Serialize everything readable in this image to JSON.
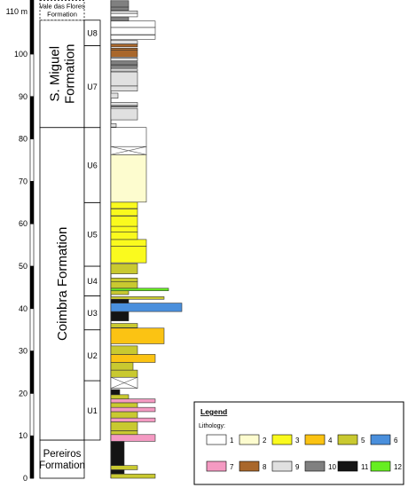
{
  "colors": {
    "1": "#ffffff",
    "2": "#fdfccf",
    "3": "#fafa1e",
    "4": "#fbc313",
    "5": "#c9c930",
    "6": "#4a8fdc",
    "7": "#f49ac2",
    "8": "#a9672b",
    "9": "#e0e0e0",
    "10": "#808080",
    "11": "#141414",
    "12": "#66ee22"
  },
  "axis": {
    "unit": "m",
    "ticks": [
      {
        "v": 0,
        "label": "0"
      },
      {
        "v": 10,
        "label": "10"
      },
      {
        "v": 20,
        "label": "20"
      },
      {
        "v": 30,
        "label": "30"
      },
      {
        "v": 40,
        "label": "40"
      },
      {
        "v": 50,
        "label": "50"
      },
      {
        "v": 60,
        "label": "60"
      },
      {
        "v": 70,
        "label": "70"
      },
      {
        "v": 80,
        "label": "80"
      },
      {
        "v": 90,
        "label": "90"
      },
      {
        "v": 100,
        "label": "100"
      },
      {
        "v": 110,
        "label": "110 m"
      }
    ],
    "black_segments": [
      [
        0,
        10
      ],
      [
        20,
        30
      ],
      [
        40,
        50
      ],
      [
        60,
        70
      ],
      [
        80,
        90
      ],
      [
        100,
        112.7
      ]
    ]
  },
  "formations": [
    {
      "name": "Pereiros Formation",
      "label_lines": [
        "Pereiros",
        "Formation"
      ],
      "from": 0,
      "to": 9,
      "orient": "horizontal"
    },
    {
      "name": "Coimbra Formation",
      "label_lines": [
        "Coimbra Formation"
      ],
      "from": 9,
      "to": 82.7,
      "orient": "vertical"
    },
    {
      "name": "S. Miguel Formation",
      "label_lines": [
        "S. Miguel",
        "Formation"
      ],
      "from": 82.7,
      "to": 108,
      "orient": "vertical"
    },
    {
      "name": "Vale das Flores Formation",
      "label_lines": [
        "Vale das Flores",
        "Formation"
      ],
      "from": 108,
      "to": 112.7,
      "orient": "horizontal",
      "dashed": true
    }
  ],
  "units": [
    {
      "label": "U1",
      "from": 9,
      "to": 23
    },
    {
      "label": "U2",
      "from": 23,
      "to": 35
    },
    {
      "label": "U3",
      "from": 35,
      "to": 43
    },
    {
      "label": "U4",
      "from": 43,
      "to": 50
    },
    {
      "label": "U5",
      "from": 50,
      "to": 65
    },
    {
      "label": "U6",
      "from": 65,
      "to": 82.7
    },
    {
      "label": "U7",
      "from": 82.7,
      "to": 102
    },
    {
      "label": "U8",
      "from": 102,
      "to": 108
    }
  ],
  "beds": [
    {
      "from": 0,
      "to": 1,
      "w": 5,
      "lith": "5"
    },
    {
      "from": 1,
      "to": 2,
      "w": 1.5,
      "lith": "11"
    },
    {
      "from": 2,
      "to": 3,
      "w": 3,
      "lith": "5"
    },
    {
      "from": 3,
      "to": 8.7,
      "w": 1.5,
      "lith": "11"
    },
    {
      "from": 8.7,
      "to": 10.3,
      "w": 5,
      "lith": "7"
    },
    {
      "from": 10.3,
      "to": 11.2,
      "w": 3,
      "lith": "5"
    },
    {
      "from": 11.2,
      "to": 13.3,
      "w": 3,
      "lith": "5"
    },
    {
      "from": 13.3,
      "to": 14.2,
      "w": 5,
      "lith": "7"
    },
    {
      "from": 14.2,
      "to": 15.7,
      "w": 3,
      "lith": "5"
    },
    {
      "from": 15.7,
      "to": 16.7,
      "w": 5,
      "lith": "7"
    },
    {
      "from": 16.7,
      "to": 17.8,
      "w": 3,
      "lith": "5"
    },
    {
      "from": 17.8,
      "to": 18.7,
      "w": 5,
      "lith": "7"
    },
    {
      "from": 18.7,
      "to": 19.7,
      "w": 2,
      "lith": "5"
    },
    {
      "from": 19.7,
      "to": 20.9,
      "w": 1,
      "lith": "11"
    },
    {
      "from": 21.2,
      "to": 23.8,
      "w": 3,
      "lith": "1",
      "cross": true
    },
    {
      "from": 23.8,
      "to": 25.5,
      "w": 3,
      "lith": "5"
    },
    {
      "from": 25.5,
      "to": 27.3,
      "w": 2.5,
      "lith": "5"
    },
    {
      "from": 27.3,
      "to": 29.2,
      "w": 5,
      "lith": "4"
    },
    {
      "from": 29.2,
      "to": 31.2,
      "w": 3,
      "lith": "5"
    },
    {
      "from": 31.7,
      "to": 35.4,
      "w": 6,
      "lith": "4"
    },
    {
      "from": 35.5,
      "to": 36.5,
      "w": 3,
      "lith": "5"
    },
    {
      "from": 37.1,
      "to": 39.3,
      "w": 2,
      "lith": "11"
    },
    {
      "from": 39.3,
      "to": 41.3,
      "w": 8,
      "lith": "6"
    },
    {
      "from": 41.3,
      "to": 42.2,
      "w": 2,
      "lith": "11"
    },
    {
      "from": 42.2,
      "to": 42.8,
      "w": 6,
      "lith": "5"
    },
    {
      "from": 43.3,
      "to": 44.2,
      "w": 2,
      "lith": "5"
    },
    {
      "from": 44.2,
      "to": 44.8,
      "w": 6.5,
      "lith": "12"
    },
    {
      "from": 44.8,
      "to": 46.3,
      "w": 3,
      "lith": "5"
    },
    {
      "from": 46.3,
      "to": 47.2,
      "w": 3,
      "lith": "5"
    },
    {
      "from": 48.2,
      "to": 50.6,
      "w": 3,
      "lith": "5"
    },
    {
      "from": 50.8,
      "to": 54.7,
      "w": 4,
      "lith": "3"
    },
    {
      "from": 54.7,
      "to": 56.3,
      "w": 4,
      "lith": "3"
    },
    {
      "from": 56.3,
      "to": 58.1,
      "w": 3,
      "lith": "3"
    },
    {
      "from": 58.1,
      "to": 59.4,
      "w": 3,
      "lith": "3"
    },
    {
      "from": 59.4,
      "to": 61.8,
      "w": 3,
      "lith": "3"
    },
    {
      "from": 61.9,
      "to": 63.5,
      "w": 3,
      "lith": "3"
    },
    {
      "from": 63.6,
      "to": 65.1,
      "w": 3,
      "lith": "3"
    },
    {
      "from": 65.1,
      "to": 76.3,
      "w": 4,
      "lith": "2"
    },
    {
      "from": 76.3,
      "to": 78.2,
      "w": 4,
      "lith": "1",
      "cross": true
    },
    {
      "from": 78.2,
      "to": 82.7,
      "w": 4,
      "lith": "1"
    },
    {
      "from": 82.8,
      "to": 83.6,
      "w": 0.6,
      "lith": "9"
    },
    {
      "from": 84.5,
      "to": 87.2,
      "w": 3,
      "lith": "9"
    },
    {
      "from": 87.5,
      "to": 87.9,
      "w": 3,
      "lith": "10"
    },
    {
      "from": 87.9,
      "to": 88.6,
      "w": 3,
      "lith": "9"
    },
    {
      "from": 89.6,
      "to": 90.8,
      "w": 0.8,
      "lith": "9"
    },
    {
      "from": 91.3,
      "to": 92.5,
      "w": 3,
      "lith": "9"
    },
    {
      "from": 92.5,
      "to": 95.8,
      "w": 3,
      "lith": "9"
    },
    {
      "from": 96,
      "to": 96.5,
      "w": 3,
      "lith": "9"
    },
    {
      "from": 96.8,
      "to": 97.4,
      "w": 3,
      "lith": "10"
    },
    {
      "from": 97.5,
      "to": 98.2,
      "w": 3,
      "lith": "10"
    },
    {
      "from": 98.4,
      "to": 99.1,
      "w": 3,
      "lith": "9"
    },
    {
      "from": 99.3,
      "to": 100.9,
      "w": 3,
      "lith": "8"
    },
    {
      "from": 100.9,
      "to": 101.4,
      "w": 3,
      "lith": "8"
    },
    {
      "from": 101.7,
      "to": 102.4,
      "w": 3,
      "lith": "8"
    },
    {
      "from": 102.4,
      "to": 103.2,
      "w": 3,
      "lith": "9"
    },
    {
      "from": 103.5,
      "to": 104.5,
      "w": 5,
      "lith": "1"
    },
    {
      "from": 104.6,
      "to": 106.3,
      "w": 5,
      "lith": "1"
    },
    {
      "from": 106.3,
      "to": 107.8,
      "w": 5,
      "lith": "1"
    },
    {
      "from": 107.8,
      "to": 108.8,
      "w": 2,
      "lith": "10"
    },
    {
      "from": 108.8,
      "to": 109.6,
      "w": 3,
      "lith": "1"
    },
    {
      "from": 109.6,
      "to": 110.2,
      "w": 3,
      "lith": "9"
    },
    {
      "from": 110.3,
      "to": 111.1,
      "w": 2,
      "lith": "10"
    },
    {
      "from": 111.1,
      "to": 112.6,
      "w": 2,
      "lith": "10"
    }
  ],
  "legend": {
    "title": "Legend",
    "subtitle": "Lithology:",
    "items": [
      "1",
      "2",
      "3",
      "4",
      "5",
      "6",
      "7",
      "8",
      "9",
      "10",
      "11",
      "12"
    ]
  }
}
